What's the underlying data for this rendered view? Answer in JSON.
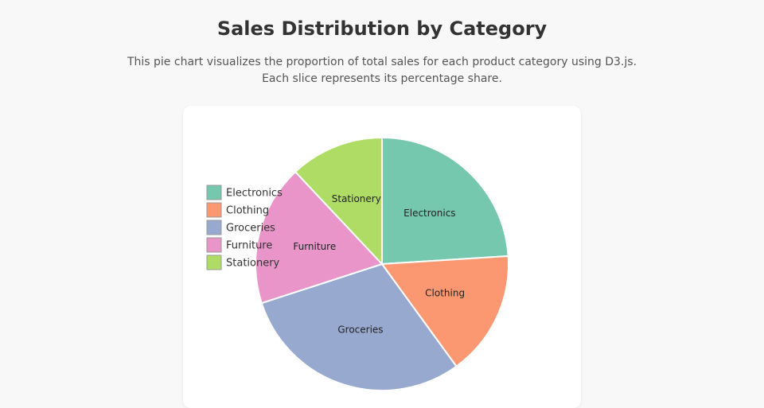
{
  "chart_data": {
    "type": "pie",
    "title": "Sales Distribution by Category",
    "subtitle": [
      "This pie chart visualizes the proportion of total sales for each product category using D3.js.",
      "Each slice represents its percentage share."
    ],
    "categories": [
      "Electronics",
      "Clothing",
      "Groceries",
      "Furniture",
      "Stationery"
    ],
    "values": [
      24,
      16,
      30,
      18,
      12
    ],
    "colors": [
      "#66c2a5",
      "#fc8d62",
      "#8da0cb",
      "#e78ac3",
      "#a6d854"
    ],
    "legend": "left"
  }
}
